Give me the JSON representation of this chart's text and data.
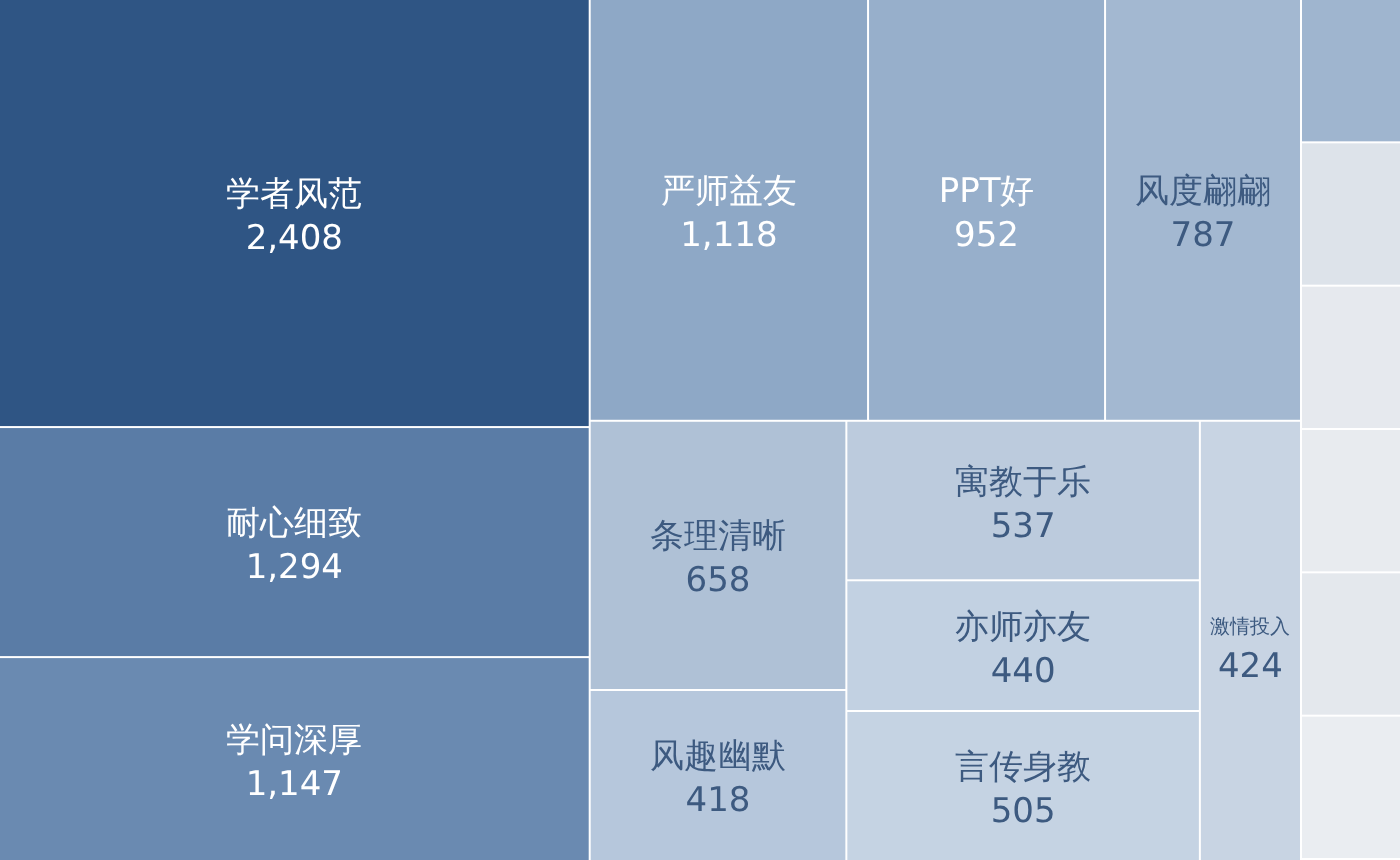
{
  "chart_data": {
    "type": "other",
    "value_labels": [
      "2,408",
      "1,294",
      "1,147",
      "1,118",
      "952",
      null,
      "787",
      "658",
      "418",
      "537",
      "440",
      "505",
      "424",
      null,
      null,
      null,
      null,
      null
    ],
    "categories": [
      "学者风范",
      "耐心细致",
      "学问深厚",
      "严师益友",
      "PPT好",
      null,
      "风度翩翩",
      "条理清晰",
      "风趣幽默",
      "寓教于乐",
      "亦师亦友",
      "言传身教",
      "激情投入",
      null,
      null,
      null,
      null,
      null
    ],
    "values": [
      2408,
      1294,
      1147,
      1118,
      952,
      null,
      787,
      658,
      418,
      537,
      440,
      505,
      424,
      null,
      null,
      null,
      null,
      null
    ],
    "colors": [
      "#2f5584",
      "#5a7ca6",
      "#6a8ab1",
      "#8ea8c6",
      "#97afcb",
      "#9fb5cf",
      "#a3b8d1",
      "#afc1d6",
      "#b6c7dc",
      "#bccbdd",
      "#c2d1e2",
      "#c5d3e3",
      "#c8d4e3",
      "#dde3ea",
      "#e6e9ee",
      "#e8ebef",
      "#e4e8ed",
      "#eaedf1"
    ]
  }
}
